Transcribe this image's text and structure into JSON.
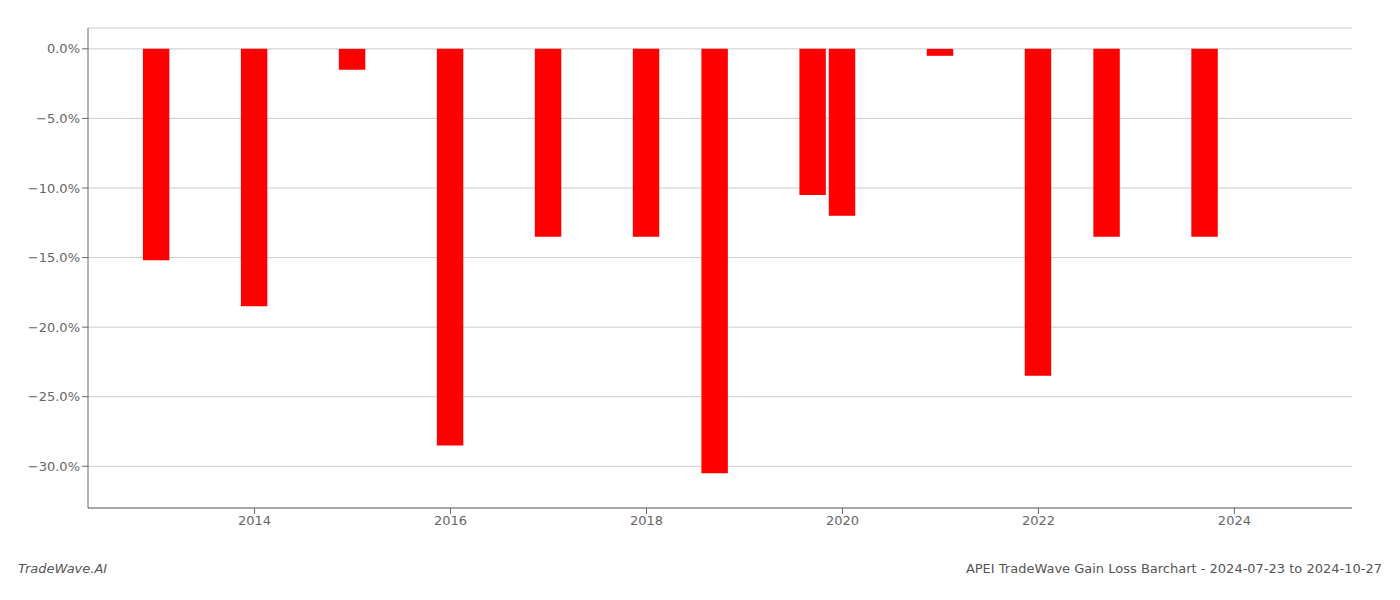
{
  "chart_data": {
    "type": "bar",
    "title": "APEI TradeWave Gain Loss Barchart - 2024-07-23 to 2024-10-27",
    "annotations": [
      "TradeWave.AI"
    ],
    "x": [
      2013,
      2014,
      2015,
      2016,
      2017,
      2018,
      2018.7,
      2019.7,
      2020,
      2021,
      2022,
      2022.7,
      2023.7
    ],
    "values": [
      -15.2,
      -18.5,
      -1.5,
      -28.5,
      -13.5,
      -13.5,
      -30.5,
      -10.5,
      -12.0,
      -0.5,
      -23.5,
      -13.5,
      -13.5
    ],
    "color": "#ff0000",
    "xlim": [
      2012.3,
      2025.2
    ],
    "xticks": [
      2014,
      2016,
      2018,
      2020,
      2022,
      2024
    ],
    "ylim": [
      -33,
      1.5
    ],
    "yticks": [
      {
        "value": 0.0,
        "label": "0.0%"
      },
      {
        "value": -5.0,
        "label": "−5.0%"
      },
      {
        "value": -10.0,
        "label": "−10.0%"
      },
      {
        "value": -15.0,
        "label": "−15.0%"
      },
      {
        "value": -20.0,
        "label": "−20.0%"
      },
      {
        "value": -25.0,
        "label": "−25.0%"
      },
      {
        "value": -30.0,
        "label": "−30.0%"
      }
    ],
    "grid": true
  }
}
